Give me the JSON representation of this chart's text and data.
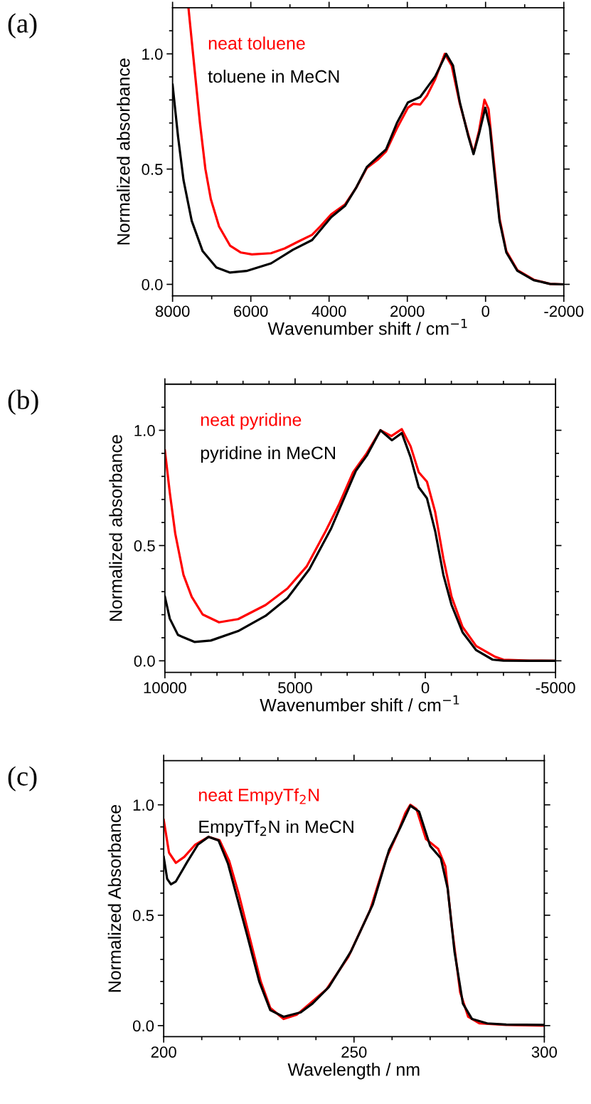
{
  "chart_data": [
    {
      "type": "line",
      "annotations": [
        "(a)"
      ],
      "xlabel": "Wavenumber shift / cm$^{−1}$",
      "ylabel": "Normalized absorbance",
      "legend": "top left",
      "grid": false,
      "marker": "none",
      "line_style": "solid",
      "xlim": [
        8000,
        -2000
      ],
      "ylim": [
        -0.05,
        1.2
      ],
      "xticks": [
        8000,
        {
          "value": 7000,
          "label": null
        },
        6000,
        {
          "value": 5000,
          "label": null
        },
        4000,
        {
          "value": 3000,
          "label": null
        },
        2000,
        {
          "value": 1000,
          "label": null
        },
        0,
        {
          "value": -1000,
          "label": null
        },
        {
          "value": -2000,
          "label": "-2000"
        }
      ],
      "yticks": [
        {
          "value": 0,
          "label": "0.0"
        },
        {
          "value": 0.1,
          "label": null
        },
        {
          "value": 0.2,
          "label": null
        },
        {
          "value": 0.3,
          "label": null
        },
        {
          "value": 0.4,
          "label": null
        },
        {
          "value": 0.5,
          "label": "0.5"
        },
        {
          "value": 0.6,
          "label": null
        },
        {
          "value": 0.7,
          "label": null
        },
        {
          "value": 0.8,
          "label": null
        },
        {
          "value": 0.9,
          "label": null
        },
        {
          "value": 1,
          "label": "1.0"
        },
        {
          "value": 1.1,
          "label": null
        }
      ],
      "series": [
        {
          "name": "neat toluene",
          "color": "#ff0000",
          "x": [
            7594,
            7440,
            7300,
            7161,
            7021,
            6811,
            6531,
            6252,
            5972,
            5483,
            5133,
            4783,
            4434,
            4224,
            3944,
            3594,
            3315,
            3035,
            2755,
            2545,
            2266,
            1986,
            1846,
            1671,
            1497,
            1287,
            1042,
            867,
            657,
            448,
            308,
            168,
            28,
            -77,
            -217,
            -357,
            -531,
            -811,
            -1231,
            -1650,
            -2000
          ],
          "values": [
            1.2,
            0.937,
            0.7,
            0.5,
            0.369,
            0.251,
            0.168,
            0.138,
            0.13,
            0.135,
            0.156,
            0.186,
            0.215,
            0.251,
            0.304,
            0.346,
            0.417,
            0.505,
            0.541,
            0.576,
            0.677,
            0.766,
            0.783,
            0.78,
            0.819,
            0.89,
            1.0,
            0.949,
            0.783,
            0.653,
            0.57,
            0.665,
            0.801,
            0.76,
            0.523,
            0.286,
            0.144,
            0.062,
            0.02,
            0.002,
            0
          ]
        },
        {
          "name": "toluene in MeCN",
          "color": "#000000",
          "x": [
            8000,
            7860,
            7720,
            7510,
            7231,
            6881,
            6531,
            6112,
            5483,
            4923,
            4434,
            3944,
            3594,
            3315,
            3035,
            2755,
            2545,
            2266,
            1986,
            1671,
            1287,
            1007,
            832,
            657,
            448,
            308,
            168,
            7,
            -112,
            -217,
            -357,
            -531,
            -811,
            -1231,
            -1650,
            -2000
          ],
          "values": [
            0.866,
            0.641,
            0.452,
            0.275,
            0.144,
            0.073,
            0.051,
            0.058,
            0.091,
            0.15,
            0.192,
            0.292,
            0.34,
            0.417,
            0.509,
            0.553,
            0.585,
            0.7,
            0.789,
            0.813,
            0.902,
            1.0,
            0.949,
            0.789,
            0.647,
            0.565,
            0.653,
            0.766,
            0.677,
            0.499,
            0.275,
            0.138,
            0.059,
            0.018,
            0.002,
            0
          ]
        }
      ]
    },
    {
      "type": "line",
      "annotations": [
        "(b)"
      ],
      "xlabel": "Wavenumber shift / cm$^{−1}$",
      "ylabel": "Normalized absorbance",
      "legend": "top left",
      "grid": false,
      "marker": "none",
      "line_style": "solid",
      "xlim": [
        10000,
        -5000
      ],
      "ylim": [
        -0.05,
        1.2
      ],
      "xticks": [
        10000,
        {
          "value": 9000,
          "label": null
        },
        {
          "value": 8000,
          "label": null
        },
        {
          "value": 7000,
          "label": null
        },
        {
          "value": 6000,
          "label": null
        },
        5000,
        {
          "value": 4000,
          "label": null
        },
        {
          "value": 3000,
          "label": null
        },
        {
          "value": 2000,
          "label": null
        },
        {
          "value": 1000,
          "label": null
        },
        0,
        {
          "value": -1000,
          "label": null
        },
        {
          "value": -2000,
          "label": null
        },
        {
          "value": -3000,
          "label": null
        },
        {
          "value": -4000,
          "label": null
        },
        {
          "value": -5000,
          "label": "-5000"
        }
      ],
      "yticks": [
        {
          "value": 0,
          "label": "0.0"
        },
        {
          "value": 0.1,
          "label": null
        },
        {
          "value": 0.2,
          "label": null
        },
        {
          "value": 0.3,
          "label": null
        },
        {
          "value": 0.4,
          "label": null
        },
        {
          "value": 0.5,
          "label": "0.5"
        },
        {
          "value": 0.6,
          "label": null
        },
        {
          "value": 0.7,
          "label": null
        },
        {
          "value": 0.8,
          "label": null
        },
        {
          "value": 0.9,
          "label": null
        },
        {
          "value": 1,
          "label": "1.0"
        },
        {
          "value": 1.1,
          "label": null
        }
      ],
      "series": [
        {
          "name": "neat pyridine",
          "color": "#ff0000",
          "x": [
            10000,
            9811,
            9601,
            9286,
            8971,
            8550,
            7920,
            7185,
            6134,
            5294,
            4559,
            3824,
            3298,
            2773,
            2248,
            1723,
            1303,
            903,
            567,
            252,
            -63,
            -378,
            -693,
            -1008,
            -1429,
            -1954,
            -2689,
            -3000,
            -4000,
            -5000
          ],
          "values": [
            0.913,
            0.729,
            0.551,
            0.373,
            0.278,
            0.201,
            0.167,
            0.181,
            0.242,
            0.314,
            0.409,
            0.563,
            0.682,
            0.818,
            0.901,
            1.0,
            0.975,
            1.005,
            0.931,
            0.818,
            0.777,
            0.646,
            0.444,
            0.278,
            0.147,
            0.064,
            0.017,
            0.005,
            0.001,
            0
          ]
        },
        {
          "name": "pyridine in MeCN",
          "color": "#000000",
          "x": [
            10000,
            9811,
            9496,
            8866,
            8235,
            7185,
            6134,
            5294,
            4454,
            3613,
            2983,
            2668,
            2248,
            1723,
            1282,
            903,
            567,
            252,
            -63,
            -378,
            -693,
            -1008,
            -1429,
            -1954,
            -2584,
            -3000,
            -4000,
            -5000
          ],
          "values": [
            0.278,
            0.183,
            0.112,
            0.082,
            0.088,
            0.129,
            0.195,
            0.272,
            0.397,
            0.575,
            0.741,
            0.824,
            0.89,
            1.0,
            0.957,
            0.988,
            0.884,
            0.753,
            0.705,
            0.563,
            0.373,
            0.242,
            0.124,
            0.046,
            0.005,
            0.001,
            0,
            0
          ]
        }
      ]
    },
    {
      "type": "line",
      "annotations": [
        "(c)"
      ],
      "xlabel": "Wavelength / nm",
      "ylabel": "Normalized Absorbance",
      "legend": "top left",
      "grid": false,
      "marker": "none",
      "line_style": "solid",
      "xlim": [
        200,
        300
      ],
      "ylim": [
        -0.05,
        1.2
      ],
      "xticks": [
        200,
        {
          "value": 210,
          "label": null
        },
        {
          "value": 220,
          "label": null
        },
        {
          "value": 230,
          "label": null
        },
        {
          "value": 240,
          "label": null
        },
        250,
        {
          "value": 260,
          "label": null
        },
        {
          "value": 270,
          "label": null
        },
        {
          "value": 280,
          "label": null
        },
        {
          "value": 290,
          "label": null
        },
        300
      ],
      "yticks": [
        {
          "value": 0,
          "label": "0.0"
        },
        {
          "value": 0.1,
          "label": null
        },
        {
          "value": 0.2,
          "label": null
        },
        {
          "value": 0.3,
          "label": null
        },
        {
          "value": 0.4,
          "label": null
        },
        {
          "value": 0.5,
          "label": "0.5"
        },
        {
          "value": 0.6,
          "label": null
        },
        {
          "value": 0.7,
          "label": null
        },
        {
          "value": 0.8,
          "label": null
        },
        {
          "value": 0.9,
          "label": null
        },
        {
          "value": 1,
          "label": "1.0"
        },
        {
          "value": 1.1,
          "label": null
        }
      ],
      "series": [
        {
          "name": "neat EmpyTf$_{2}$N",
          "color": "#ff0000",
          "x": [
            200,
            201.4,
            203.2,
            205.4,
            208.3,
            211.8,
            214.7,
            217.2,
            219.7,
            222.6,
            225.5,
            228,
            231.5,
            235,
            238.4,
            242.7,
            248.5,
            254.2,
            258.5,
            261.4,
            263.5,
            264.8,
            266.4,
            268.9,
            272.1,
            274.0,
            275.7,
            277.9,
            280,
            283,
            290,
            300
          ],
          "values": [
            0.932,
            0.783,
            0.737,
            0.764,
            0.82,
            0.855,
            0.839,
            0.746,
            0.597,
            0.398,
            0.2,
            0.08,
            0.03,
            0.05,
            0.1,
            0.163,
            0.311,
            0.522,
            0.758,
            0.87,
            0.963,
            1.0,
            0.981,
            0.845,
            0.801,
            0.721,
            0.448,
            0.15,
            0.04,
            0.01,
            0.003,
            0
          ]
        },
        {
          "name": "EmpyTf$_{2}$N in MeCN",
          "color": "#000000",
          "x": [
            200,
            200.9,
            201.9,
            203.2,
            206.1,
            209.0,
            211.8,
            214.4,
            216.9,
            219.4,
            221.9,
            225.1,
            228,
            231.5,
            236,
            239.1,
            243.4,
            249.2,
            254.9,
            259.2,
            262.1,
            264.8,
            267.1,
            270.0,
            272.8,
            274.6,
            276.4,
            278.6,
            281,
            285,
            290,
            300
          ],
          "values": [
            0.764,
            0.665,
            0.64,
            0.653,
            0.739,
            0.82,
            0.855,
            0.839,
            0.733,
            0.572,
            0.411,
            0.2,
            0.07,
            0.04,
            0.06,
            0.1,
            0.175,
            0.336,
            0.547,
            0.795,
            0.895,
            0.996,
            0.969,
            0.814,
            0.758,
            0.622,
            0.336,
            0.1,
            0.03,
            0.01,
            0.005,
            0.003
          ]
        }
      ]
    }
  ]
}
